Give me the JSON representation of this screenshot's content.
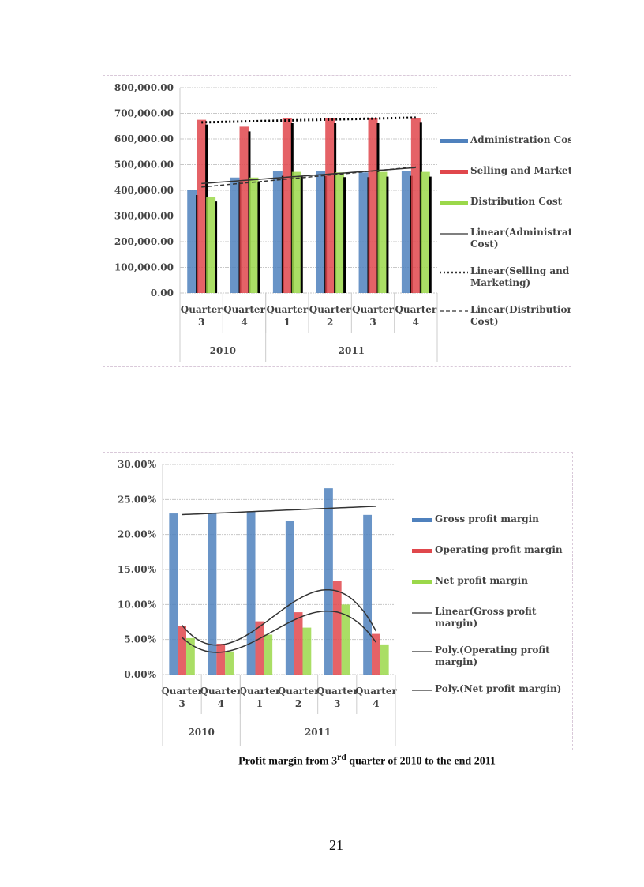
{
  "chart_data": [
    {
      "type": "bar",
      "categories": [
        [
          "Quarter",
          "3"
        ],
        [
          "Quarter",
          "4"
        ],
        [
          "Quarter",
          "1"
        ],
        [
          "Quarter",
          "2"
        ],
        [
          "Quarter",
          "3"
        ],
        [
          "Quarter",
          "4"
        ]
      ],
      "groups": [
        {
          "label": "2010",
          "span": 2
        },
        {
          "label": "2011",
          "span": 4
        }
      ],
      "ylim": [
        0,
        800000
      ],
      "yticks": [
        "0.00",
        "100,000.00",
        "200,000.00",
        "300,000.00",
        "400,000.00",
        "500,000.00",
        "600,000.00",
        "700,000.00",
        "800,000.00"
      ],
      "grid": true,
      "legend_position": "right",
      "series": [
        {
          "name": "Administration Cost",
          "color": "#4f81bd",
          "values": [
            400000,
            450000,
            475000,
            475000,
            470000,
            475000
          ]
        },
        {
          "name": "Selling and Marketing",
          "color": "#e0474c",
          "values": [
            675000,
            648000,
            680000,
            680000,
            680000,
            682000
          ]
        },
        {
          "name": "Distribution Cost",
          "color": "#9bd84a",
          "values": [
            375000,
            450000,
            472000,
            470000,
            472000,
            472000
          ]
        }
      ],
      "trendlines": [
        {
          "name": "Linear(Administration Cost)",
          "type": "linear",
          "series": 0,
          "style": "solid"
        },
        {
          "name": "Linear(Selling and Marketing)",
          "type": "linear",
          "series": 1,
          "style": "dotted"
        },
        {
          "name": "Linear(Distribution Cost)",
          "type": "linear",
          "series": 2,
          "style": "dashed"
        }
      ]
    },
    {
      "type": "bar",
      "categories": [
        [
          "Quarter",
          "3"
        ],
        [
          "Quarter",
          "4"
        ],
        [
          "Quarter",
          "1"
        ],
        [
          "Quarter",
          "2"
        ],
        [
          "Quarter",
          "3"
        ],
        [
          "Quarter",
          "4"
        ]
      ],
      "groups": [
        {
          "label": "2010",
          "span": 2
        },
        {
          "label": "2011",
          "span": 4
        }
      ],
      "ylim": [
        0,
        30
      ],
      "yticks": [
        "0.00%",
        "5.00%",
        "10.00%",
        "15.00%",
        "20.00%",
        "25.00%",
        "30.00%"
      ],
      "grid": true,
      "legend_position": "right",
      "series": [
        {
          "name": "Gross profit margin",
          "color": "#4f81bd",
          "values": [
            23.0,
            23.0,
            23.3,
            21.9,
            26.6,
            22.8
          ]
        },
        {
          "name": "Operating profit margin",
          "color": "#e0474c",
          "values": [
            6.9,
            4.4,
            7.6,
            8.9,
            13.4,
            5.8
          ]
        },
        {
          "name": "Net profit margin",
          "color": "#9bd84a",
          "values": [
            5.2,
            3.3,
            5.7,
            6.7,
            10.0,
            4.3
          ]
        }
      ],
      "trendlines": [
        {
          "name": "Linear(Gross profit margin)",
          "type": "linear",
          "series": 0,
          "style": "solid"
        },
        {
          "name": "Poly.(Operating profit margin)",
          "type": "poly",
          "series": 1,
          "style": "solid"
        },
        {
          "name": "Poly.(Net profit margin)",
          "type": "poly",
          "series": 2,
          "style": "solid"
        }
      ]
    }
  ],
  "caption": {
    "before": "Profit  margin  from  3",
    "sup": "rd",
    "after": "  quarter  of 2010 to the end 2011"
  },
  "page_number": "21"
}
